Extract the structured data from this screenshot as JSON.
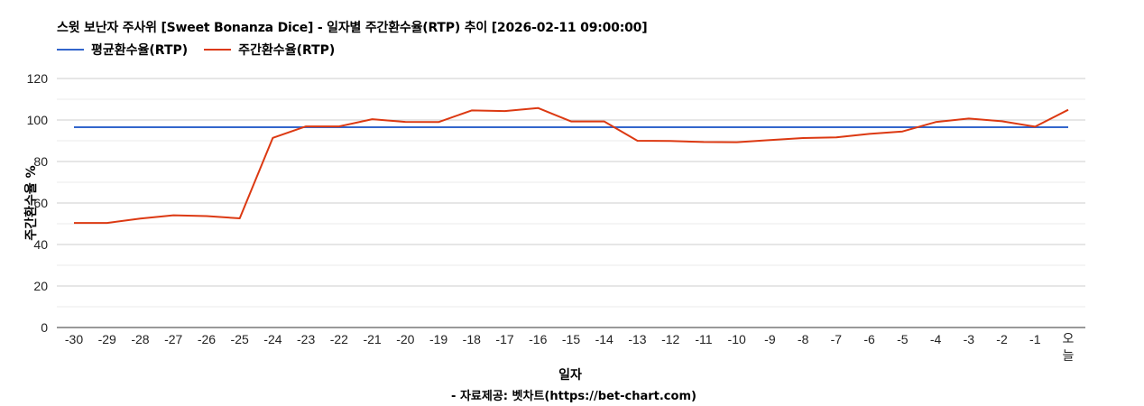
{
  "header": {
    "title": "스윗 보난자 주사위 [Sweet Bonanza Dice] - 일자별 주간환수율(RTP) 추이 [2026-02-11 09:00:00]"
  },
  "legend": [
    {
      "label": "평균환수율(RTP)",
      "color": "#3366cc"
    },
    {
      "label": "주간환수율(RTP)",
      "color": "#dc3912"
    }
  ],
  "footer": {
    "credit": "- 자료제공: 벳차트(https://bet-chart.com)"
  },
  "chart_data": {
    "type": "line",
    "title": "스윗 보난자 주사위 [Sweet Bonanza Dice] - 일자별 주간환수율(RTP) 추이 [2026-02-11 09:00:00]",
    "xlabel": "일자",
    "ylabel": "주간환수율 %",
    "ylim": [
      0,
      120
    ],
    "yticks": [
      0,
      20,
      40,
      60,
      80,
      100,
      120
    ],
    "grid": true,
    "legend_position": "top",
    "categories": [
      "-30",
      "-29",
      "-28",
      "-27",
      "-26",
      "-25",
      "-24",
      "-23",
      "-22",
      "-21",
      "-20",
      "-19",
      "-18",
      "-17",
      "-16",
      "-15",
      "-14",
      "-13",
      "-12",
      "-11",
      "-10",
      "-9",
      "-8",
      "-7",
      "-6",
      "-5",
      "-4",
      "-3",
      "-2",
      "-1",
      "오늘"
    ],
    "series": [
      {
        "name": "평균환수율(RTP)",
        "color": "#3366cc",
        "values": [
          96.5,
          96.5,
          96.5,
          96.5,
          96.5,
          96.5,
          96.5,
          96.5,
          96.5,
          96.5,
          96.5,
          96.5,
          96.5,
          96.5,
          96.5,
          96.5,
          96.5,
          96.5,
          96.5,
          96.5,
          96.5,
          96.5,
          96.5,
          96.5,
          96.5,
          96.5,
          96.5,
          96.5,
          96.5,
          96.5,
          96.5
        ]
      },
      {
        "name": "주간환수율(RTP)",
        "color": "#dc3912",
        "values": [
          50.4,
          50.4,
          52.5,
          54.1,
          53.7,
          52.6,
          91.4,
          96.9,
          96.9,
          100.4,
          99.1,
          99.0,
          104.6,
          104.3,
          105.8,
          99.3,
          99.3,
          90.0,
          89.9,
          89.4,
          89.3,
          90.3,
          91.3,
          91.6,
          93.3,
          94.5,
          99.0,
          100.7,
          99.4,
          96.8,
          104.9
        ]
      }
    ]
  }
}
